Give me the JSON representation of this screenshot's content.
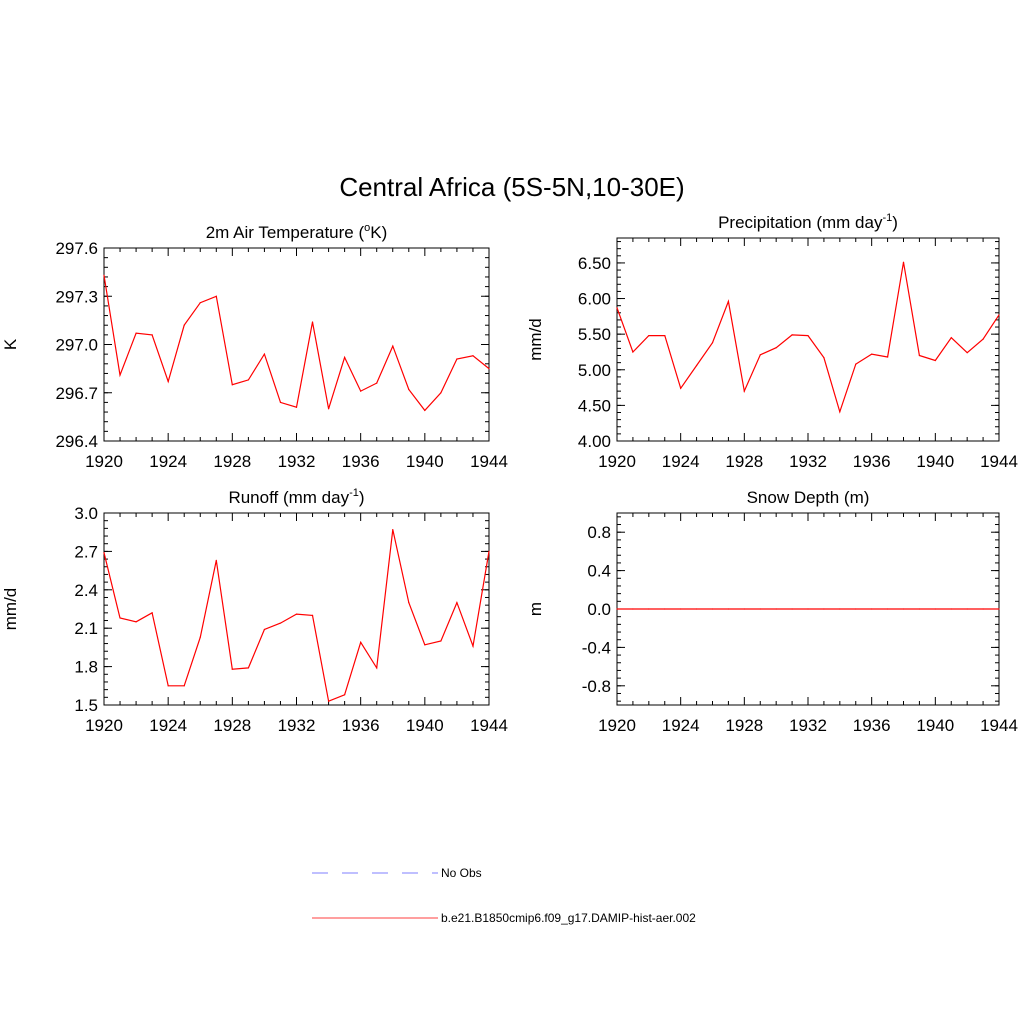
{
  "figure": {
    "title": "Central Africa (5S-5N,10-30E)",
    "legend": [
      {
        "label": "No Obs",
        "color": "#9999ff",
        "style": "dashed"
      },
      {
        "label": "b.e21.B1850cmip6.f09_g17.DAMIP-hist-aer.002",
        "color": "#ff6666",
        "style": "solid"
      }
    ]
  },
  "chart_data": [
    {
      "type": "line",
      "title": "2m Air Temperature (",
      "title_sup": "o",
      "title_after": "K)",
      "ylabel": "K",
      "color": "#ff0000",
      "x": [
        1920,
        1921,
        1922,
        1923,
        1924,
        1925,
        1926,
        1927,
        1928,
        1929,
        1930,
        1931,
        1932,
        1933,
        1934,
        1935,
        1936,
        1937,
        1938,
        1939,
        1940,
        1941,
        1942,
        1943,
        1944
      ],
      "values": [
        297.43,
        296.81,
        297.07,
        297.06,
        296.77,
        297.12,
        297.26,
        297.3,
        296.75,
        296.78,
        296.94,
        296.64,
        296.61,
        297.14,
        296.6,
        296.92,
        296.71,
        296.76,
        296.99,
        296.72,
        296.59,
        296.7,
        296.91,
        296.93,
        296.85
      ],
      "xlim": [
        1920,
        1944
      ],
      "ylim": [
        296.4,
        297.6
      ],
      "xticks": [
        1920,
        1924,
        1928,
        1932,
        1936,
        1940,
        1944
      ],
      "yticks": [
        296.4,
        296.7,
        297.0,
        297.3,
        297.6
      ],
      "ytick_labels": [
        "296.4",
        "296.7",
        "297.0",
        "297.3",
        "297.6"
      ]
    },
    {
      "type": "line",
      "title": "Precipitation (mm day",
      "title_sup": "-1",
      "title_after": ")",
      "ylabel": "mm/d",
      "color": "#ff0000",
      "x": [
        1920,
        1921,
        1922,
        1923,
        1924,
        1925,
        1926,
        1927,
        1928,
        1929,
        1930,
        1931,
        1932,
        1933,
        1934,
        1935,
        1936,
        1937,
        1938,
        1939,
        1940,
        1941,
        1942,
        1943,
        1944
      ],
      "values": [
        5.87,
        5.25,
        5.48,
        5.48,
        4.74,
        5.06,
        5.38,
        5.96,
        4.7,
        5.21,
        5.31,
        5.49,
        5.48,
        5.17,
        4.41,
        5.08,
        5.22,
        5.18,
        6.51,
        5.2,
        5.13,
        5.45,
        5.24,
        5.43,
        5.77
      ],
      "xlim": [
        1920,
        1944
      ],
      "ylim": [
        4.0,
        6.85
      ],
      "xticks": [
        1920,
        1924,
        1928,
        1932,
        1936,
        1940,
        1944
      ],
      "yticks": [
        4.0,
        4.5,
        5.0,
        5.5,
        6.0,
        6.5
      ],
      "ytick_labels": [
        "4.00",
        "4.50",
        "5.00",
        "5.50",
        "6.00",
        "6.50"
      ]
    },
    {
      "type": "line",
      "title": "Runoff (mm day",
      "title_sup": "-1",
      "title_after": ")",
      "ylabel": "mm/d",
      "color": "#ff0000",
      "x": [
        1920,
        1921,
        1922,
        1923,
        1924,
        1925,
        1926,
        1927,
        1928,
        1929,
        1930,
        1931,
        1932,
        1933,
        1934,
        1935,
        1936,
        1937,
        1938,
        1939,
        1940,
        1941,
        1942,
        1943,
        1944
      ],
      "values": [
        2.69,
        2.18,
        2.15,
        2.22,
        1.65,
        1.65,
        2.03,
        2.63,
        1.78,
        1.79,
        2.09,
        2.14,
        2.21,
        2.2,
        1.53,
        1.58,
        1.99,
        1.79,
        2.87,
        2.3,
        1.97,
        2.0,
        2.3,
        1.96,
        2.7
      ],
      "xlim": [
        1920,
        1944
      ],
      "ylim": [
        1.5,
        3.0
      ],
      "xticks": [
        1920,
        1924,
        1928,
        1932,
        1936,
        1940,
        1944
      ],
      "yticks": [
        1.5,
        1.8,
        2.1,
        2.4,
        2.7,
        3.0
      ],
      "ytick_labels": [
        "1.5",
        "1.8",
        "2.1",
        "2.4",
        "2.7",
        "3.0"
      ]
    },
    {
      "type": "line",
      "title": "Snow Depth (m)",
      "title_sup": "",
      "title_after": "",
      "ylabel": "m",
      "color": "#ff0000",
      "x": [
        1920,
        1921,
        1922,
        1923,
        1924,
        1925,
        1926,
        1927,
        1928,
        1929,
        1930,
        1931,
        1932,
        1933,
        1934,
        1935,
        1936,
        1937,
        1938,
        1939,
        1940,
        1941,
        1942,
        1943,
        1944
      ],
      "values": [
        0,
        0,
        0,
        0,
        0,
        0,
        0,
        0,
        0,
        0,
        0,
        0,
        0,
        0,
        0,
        0,
        0,
        0,
        0,
        0,
        0,
        0,
        0,
        0,
        0
      ],
      "xlim": [
        1920,
        1944
      ],
      "ylim": [
        -1.0,
        1.0
      ],
      "xticks": [
        1920,
        1924,
        1928,
        1932,
        1936,
        1940,
        1944
      ],
      "yticks": [
        -0.8,
        -0.4,
        0.0,
        0.4,
        0.8
      ],
      "ytick_labels": [
        "-0.8",
        "-0.4",
        "0.0",
        "0.4",
        "0.8"
      ]
    }
  ]
}
